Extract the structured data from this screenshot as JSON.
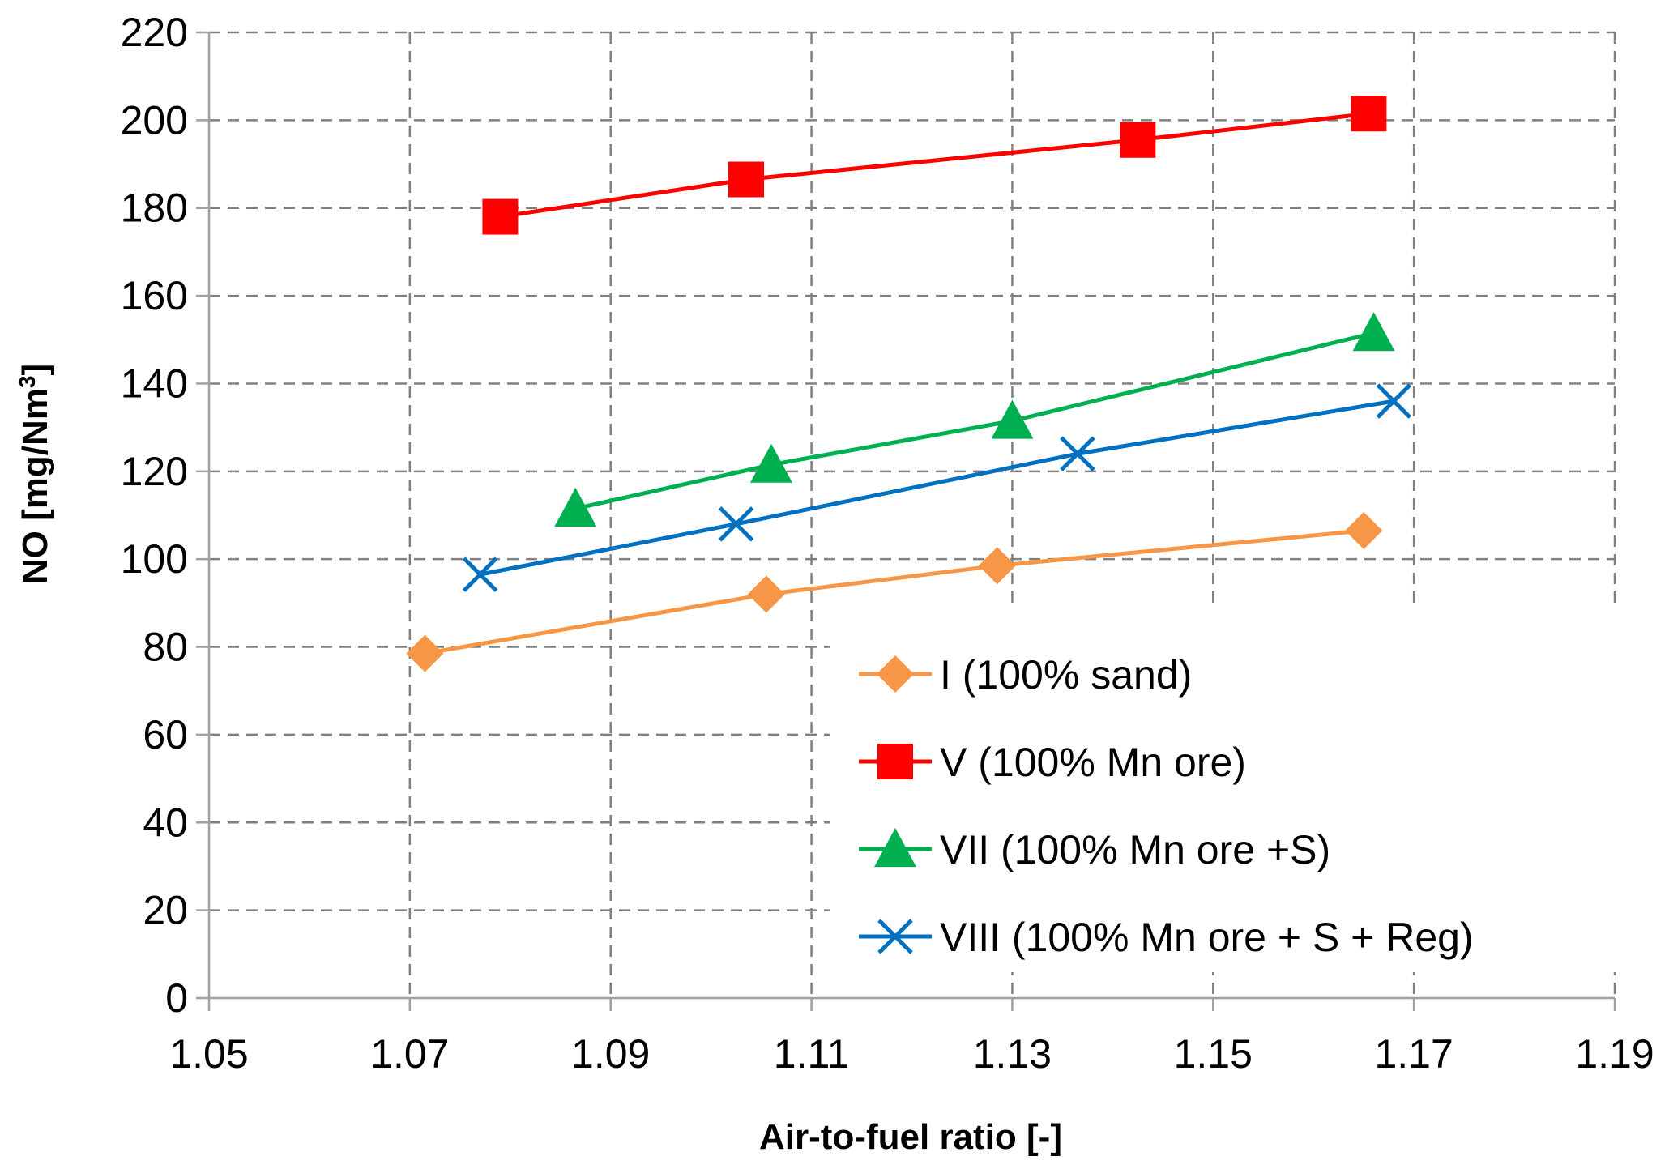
{
  "chart_data": {
    "type": "line",
    "title": "",
    "xlabel": "Air-to-fuel ratio [-]",
    "ylabel_main": "NO [mg/Nm",
    "ylabel_sup": "3",
    "ylabel_end": "]",
    "xlim": [
      1.05,
      1.19
    ],
    "ylim": [
      0,
      220
    ],
    "x_ticks": [
      "1.05",
      "1.07",
      "1.09",
      "1.11",
      "1.13",
      "1.15",
      "1.17",
      "1.19"
    ],
    "y_ticks": [
      "0",
      "20",
      "40",
      "60",
      "80",
      "100",
      "120",
      "140",
      "160",
      "180",
      "200",
      "220"
    ],
    "grid": true,
    "legend_position": "bottom-right",
    "series": [
      {
        "name": "I (100% sand)",
        "color": "#F79646",
        "marker": "diamond",
        "x": [
          1.0715,
          1.1055,
          1.1285,
          1.165
        ],
        "y": [
          78.5,
          92,
          98.5,
          106.5
        ]
      },
      {
        "name": "V (100% Mn ore)",
        "color": "#FF0000",
        "marker": "square",
        "x": [
          1.079,
          1.1035,
          1.1425,
          1.1655
        ],
        "y": [
          178,
          186.5,
          195.5,
          201.5
        ]
      },
      {
        "name": "VII (100% Mn ore +S)",
        "color": "#00B050",
        "marker": "triangle",
        "x": [
          1.0865,
          1.106,
          1.13,
          1.166
        ],
        "y": [
          111.5,
          121.5,
          131.5,
          151.5
        ]
      },
      {
        "name": "VIII (100% Mn ore + S + Reg)",
        "color": "#0070C0",
        "marker": "x",
        "x": [
          1.077,
          1.1025,
          1.1365,
          1.168
        ],
        "y": [
          96.5,
          108,
          124,
          136
        ]
      }
    ]
  }
}
